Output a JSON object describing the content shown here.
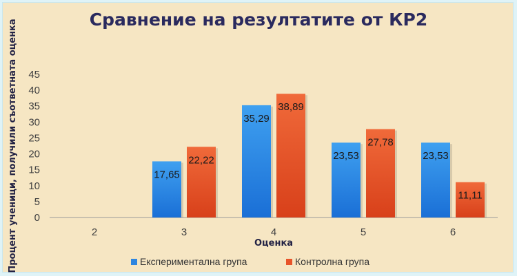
{
  "chart_data": {
    "type": "bar",
    "title": "Сравнение на резултатите от КР2",
    "xlabel": "Оценка",
    "ylabel": "Процент ученици, получили съответната оценка",
    "categories": [
      "2",
      "3",
      "4",
      "5",
      "6"
    ],
    "ylim": [
      0,
      45
    ],
    "yticks": [
      0,
      5,
      10,
      15,
      20,
      25,
      30,
      35,
      40,
      45
    ],
    "grid": false,
    "legend_position": "bottom",
    "series": [
      {
        "name": "Експериментална група",
        "values": [
          0,
          17.65,
          35.29,
          23.53,
          23.53
        ],
        "labels": [
          "",
          "17,65",
          "35,29",
          "23,53",
          "23,53"
        ],
        "color": "#2e86e0"
      },
      {
        "name": "Контролна група",
        "values": [
          0,
          22.22,
          38.89,
          27.78,
          11.11
        ],
        "labels": [
          "",
          "22,22",
          "38,89",
          "27,78",
          "11,11"
        ],
        "color": "#e8542a"
      }
    ]
  }
}
